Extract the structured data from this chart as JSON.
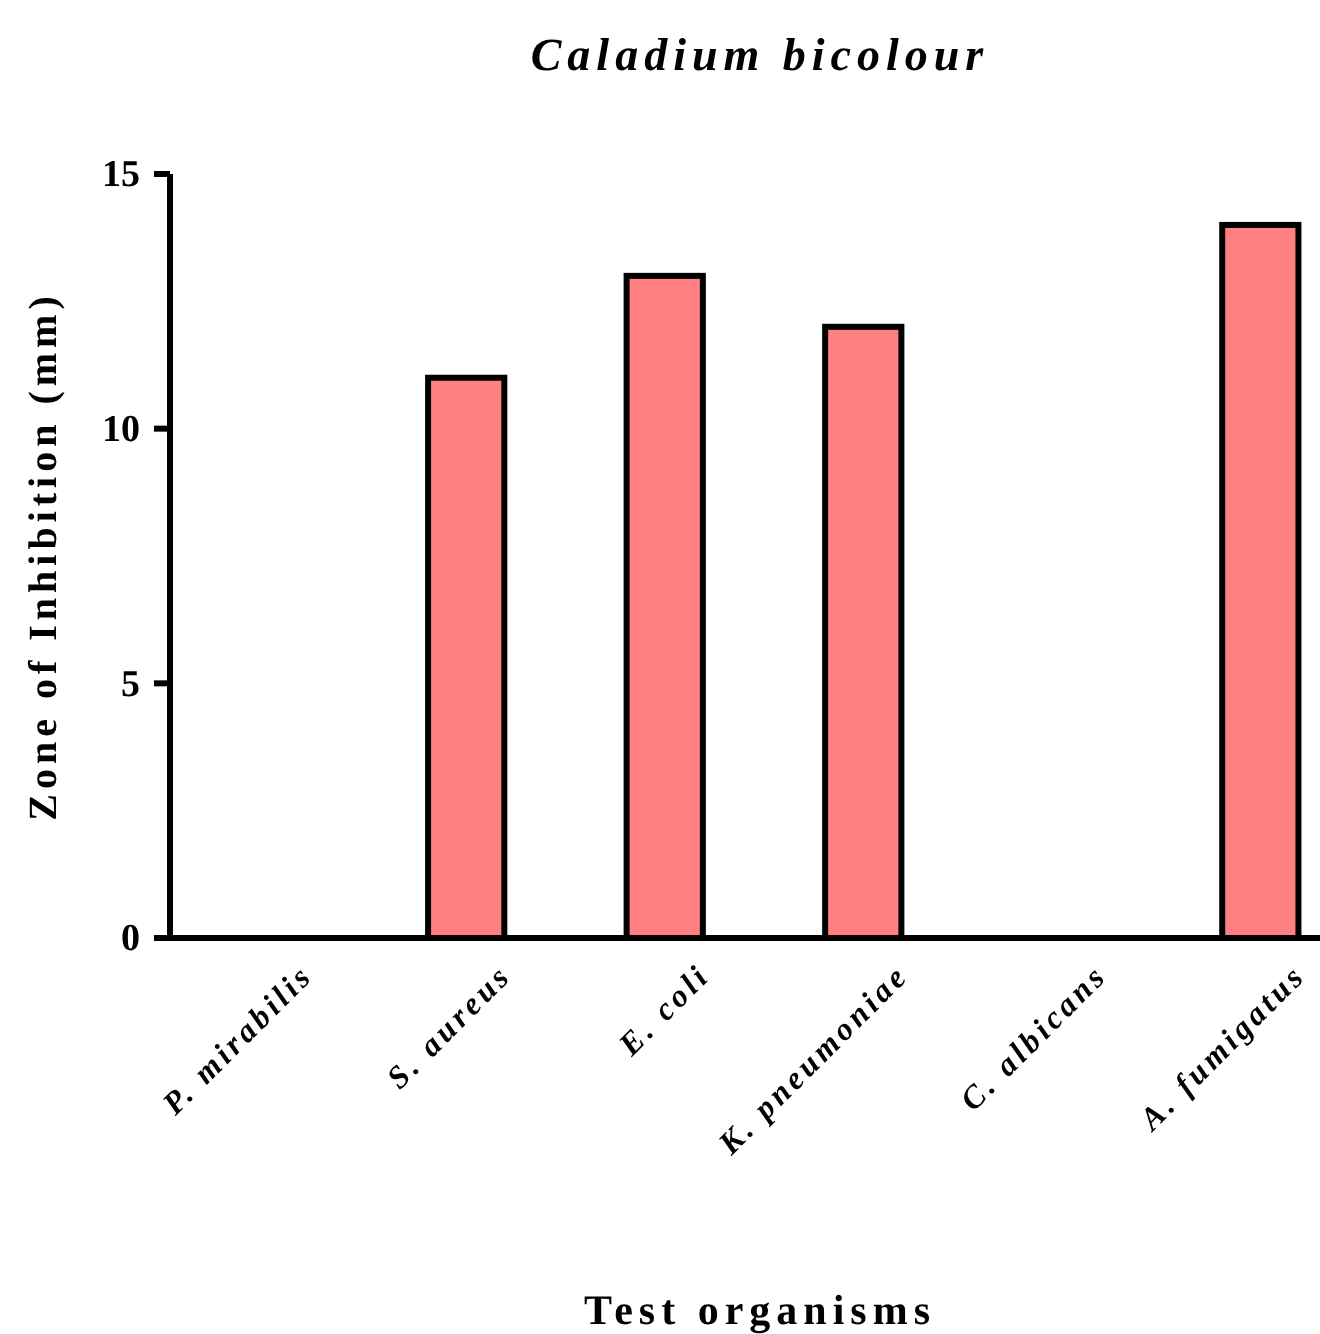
{
  "chart_data": {
    "type": "bar",
    "title": "Caladium bicolour",
    "xlabel": "Test organisms",
    "ylabel": "Zone of Inhibition (mm)",
    "categories": [
      "P. mirabilis",
      "S. aureus",
      "E. coli",
      "K. pneumoniae",
      "C. albicans",
      "A. fumigatus"
    ],
    "values": [
      0,
      11,
      13,
      12,
      0,
      14
    ],
    "color": "#ff8080",
    "ylim": [
      0,
      15
    ],
    "yticks": [
      0,
      5,
      10,
      15
    ],
    "grid": false
  }
}
